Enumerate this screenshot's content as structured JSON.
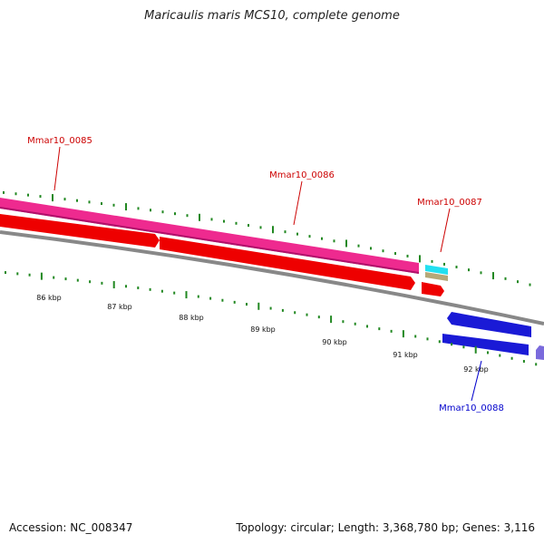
{
  "title": "Maricaulis maris MCS10, complete genome",
  "footer": {
    "accession": "Accession: NC_008347",
    "summary": "Topology: circular; Length: 3,368,780 bp; Genes: 3,116"
  },
  "colors": {
    "forward_gene_label": "#cc0000",
    "reverse_gene_label": "#0000cc",
    "backbone": "#888888",
    "tick": "#228822",
    "pink_cds": "#ee2a8f",
    "red_cds": "#ee0000",
    "cyan_feature": "#22e0f0",
    "tan_feature": "#b5a878",
    "blue_cds": "#1a1ad6",
    "violet_cds": "#7a6adc"
  },
  "scale_labels": [
    "86 kbp",
    "87 kbp",
    "88 kbp",
    "89 kbp",
    "90 kbp",
    "91 kbp",
    "92 kbp"
  ],
  "gene_labels": [
    {
      "text": "Mmar10_0085",
      "strand": "forward"
    },
    {
      "text": "Mmar10_0086",
      "strand": "forward"
    },
    {
      "text": "Mmar10_0087",
      "strand": "forward"
    },
    {
      "text": "Mmar10_0088",
      "strand": "reverse"
    }
  ]
}
